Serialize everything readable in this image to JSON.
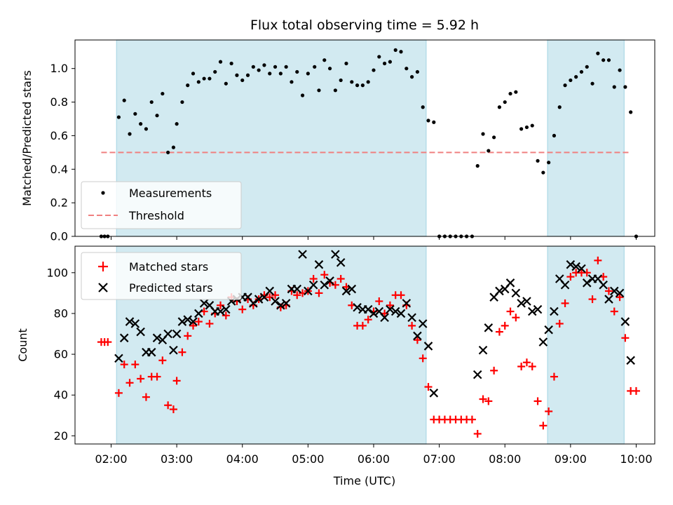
{
  "chart_data": {
    "type": "scatter",
    "title": "Flux total observing time = 5.92 h",
    "xlabel": "Time (UTC)",
    "x_ticks": [
      "02:00",
      "03:00",
      "04:00",
      "05:00",
      "06:00",
      "07:00",
      "08:00",
      "09:00",
      "10:00"
    ],
    "xlim": [
      "01:27",
      "10:17"
    ],
    "shaded_intervals": [
      [
        "02:05",
        "06:48"
      ],
      [
        "08:39",
        "09:49"
      ]
    ],
    "shade_color": "#add8e6",
    "top": {
      "ylabel": "Matched/Predicted stars",
      "ylim": [
        0,
        1.17
      ],
      "y_ticks": [
        "0.0",
        "0.2",
        "0.4",
        "0.6",
        "0.8",
        "1.0"
      ],
      "legend": [
        "Measurements",
        "Threshold"
      ],
      "legend_position": "lower left",
      "threshold": {
        "value": 0.5,
        "x_range": [
          "01:51",
          "09:55"
        ],
        "color": "#f08080"
      },
      "measurements": [
        [
          "01:51",
          0
        ],
        [
          "01:54",
          0
        ],
        [
          "01:57",
          0
        ],
        [
          "02:07",
          0.71
        ],
        [
          "02:12",
          0.81
        ],
        [
          "02:17",
          0.61
        ],
        [
          "02:22",
          0.73
        ],
        [
          "02:27",
          0.67
        ],
        [
          "02:32",
          0.64
        ],
        [
          "02:37",
          0.8
        ],
        [
          "02:42",
          0.72
        ],
        [
          "02:47",
          0.85
        ],
        [
          "02:52",
          0.5
        ],
        [
          "02:57",
          0.53
        ],
        [
          "03:00",
          0.67
        ],
        [
          "03:05",
          0.8
        ],
        [
          "03:10",
          0.9
        ],
        [
          "03:15",
          0.97
        ],
        [
          "03:20",
          0.92
        ],
        [
          "03:25",
          0.94
        ],
        [
          "03:30",
          0.94
        ],
        [
          "03:35",
          0.98
        ],
        [
          "03:40",
          1.04
        ],
        [
          "03:45",
          0.91
        ],
        [
          "03:50",
          1.03
        ],
        [
          "03:55",
          0.96
        ],
        [
          "04:00",
          0.93
        ],
        [
          "04:05",
          0.96
        ],
        [
          "04:10",
          1.01
        ],
        [
          "04:15",
          0.99
        ],
        [
          "04:20",
          1.02
        ],
        [
          "04:25",
          0.97
        ],
        [
          "04:30",
          1.01
        ],
        [
          "04:35",
          0.97
        ],
        [
          "04:40",
          1.01
        ],
        [
          "04:45",
          0.92
        ],
        [
          "04:50",
          0.98
        ],
        [
          "04:55",
          0.84
        ],
        [
          "05:00",
          0.97
        ],
        [
          "05:06",
          1.01
        ],
        [
          "05:10",
          0.87
        ],
        [
          "05:15",
          1.05
        ],
        [
          "05:20",
          1.0
        ],
        [
          "05:25",
          0.87
        ],
        [
          "05:30",
          0.93
        ],
        [
          "05:35",
          1.03
        ],
        [
          "05:40",
          0.92
        ],
        [
          "05:45",
          0.9
        ],
        [
          "05:50",
          0.9
        ],
        [
          "05:55",
          0.92
        ],
        [
          "06:00",
          0.99
        ],
        [
          "06:05",
          1.07
        ],
        [
          "06:10",
          1.03
        ],
        [
          "06:15",
          1.04
        ],
        [
          "06:20",
          1.11
        ],
        [
          "06:25",
          1.1
        ],
        [
          "06:30",
          1.0
        ],
        [
          "06:35",
          0.95
        ],
        [
          "06:40",
          0.98
        ],
        [
          "06:45",
          0.77
        ],
        [
          "06:50",
          0.69
        ],
        [
          "06:55",
          0.68
        ],
        [
          "07:00",
          0
        ],
        [
          "07:05",
          0
        ],
        [
          "07:10",
          0
        ],
        [
          "07:15",
          0
        ],
        [
          "07:20",
          0
        ],
        [
          "07:25",
          0
        ],
        [
          "07:30",
          0
        ],
        [
          "07:35",
          0.42
        ],
        [
          "07:40",
          0.61
        ],
        [
          "07:45",
          0.51
        ],
        [
          "07:50",
          0.59
        ],
        [
          "07:55",
          0.77
        ],
        [
          "08:00",
          0.8
        ],
        [
          "08:05",
          0.85
        ],
        [
          "08:10",
          0.86
        ],
        [
          "08:15",
          0.64
        ],
        [
          "08:20",
          0.65
        ],
        [
          "08:25",
          0.66
        ],
        [
          "08:30",
          0.45
        ],
        [
          "08:35",
          0.38
        ],
        [
          "08:40",
          0.44
        ],
        [
          "08:45",
          0.6
        ],
        [
          "08:50",
          0.77
        ],
        [
          "08:55",
          0.9
        ],
        [
          "09:00",
          0.93
        ],
        [
          "09:05",
          0.95
        ],
        [
          "09:10",
          0.98
        ],
        [
          "09:15",
          1.01
        ],
        [
          "09:20",
          0.91
        ],
        [
          "09:25",
          1.09
        ],
        [
          "09:30",
          1.05
        ],
        [
          "09:35",
          1.05
        ],
        [
          "09:40",
          0.89
        ],
        [
          "09:45",
          0.99
        ],
        [
          "09:50",
          0.89
        ],
        [
          "09:55",
          0.74
        ],
        [
          "10:00",
          0
        ]
      ]
    },
    "bottom": {
      "ylabel": "Count",
      "ylim": [
        16,
        113
      ],
      "y_ticks": [
        "20",
        "40",
        "60",
        "80",
        "100"
      ],
      "legend": [
        "Matched stars",
        "Predicted stars"
      ],
      "legend_position": "upper left",
      "matched_color": "#ff0000",
      "predicted_color": "#000000",
      "matched": [
        [
          "01:51",
          66
        ],
        [
          "01:54",
          66
        ],
        [
          "01:57",
          66
        ],
        [
          "02:07",
          41
        ],
        [
          "02:12",
          55
        ],
        [
          "02:17",
          46
        ],
        [
          "02:22",
          55
        ],
        [
          "02:27",
          48
        ],
        [
          "02:32",
          39
        ],
        [
          "02:37",
          49
        ],
        [
          "02:42",
          49
        ],
        [
          "02:47",
          57
        ],
        [
          "02:52",
          35
        ],
        [
          "02:57",
          33
        ],
        [
          "03:00",
          47
        ],
        [
          "03:05",
          61
        ],
        [
          "03:10",
          69
        ],
        [
          "03:15",
          74
        ],
        [
          "03:20",
          76
        ],
        [
          "03:25",
          81
        ],
        [
          "03:30",
          75
        ],
        [
          "03:35",
          80
        ],
        [
          "03:40",
          84
        ],
        [
          "03:45",
          79
        ],
        [
          "03:50",
          88
        ],
        [
          "03:55",
          86
        ],
        [
          "04:00",
          82
        ],
        [
          "04:05",
          87
        ],
        [
          "04:10",
          84
        ],
        [
          "04:15",
          87
        ],
        [
          "04:20",
          89
        ],
        [
          "04:25",
          88
        ],
        [
          "04:30",
          89
        ],
        [
          "04:35",
          83
        ],
        [
          "04:40",
          84
        ],
        [
          "04:45",
          91
        ],
        [
          "04:50",
          89
        ],
        [
          "04:55",
          90
        ],
        [
          "05:00",
          91
        ],
        [
          "05:05",
          97
        ],
        [
          "05:10",
          90
        ],
        [
          "05:15",
          99
        ],
        [
          "05:20",
          95
        ],
        [
          "05:25",
          94
        ],
        [
          "05:30",
          97
        ],
        [
          "05:35",
          93
        ],
        [
          "05:40",
          84
        ],
        [
          "05:45",
          74
        ],
        [
          "05:50",
          74
        ],
        [
          "05:55",
          77
        ],
        [
          "06:00",
          81
        ],
        [
          "06:05",
          86
        ],
        [
          "06:10",
          80
        ],
        [
          "06:15",
          84
        ],
        [
          "06:20",
          89
        ],
        [
          "06:25",
          89
        ],
        [
          "06:30",
          84
        ],
        [
          "06:35",
          74
        ],
        [
          "06:40",
          67
        ],
        [
          "06:45",
          58
        ],
        [
          "06:50",
          44
        ],
        [
          "06:55",
          28
        ],
        [
          "07:00",
          28
        ],
        [
          "07:05",
          28
        ],
        [
          "07:10",
          28
        ],
        [
          "07:15",
          28
        ],
        [
          "07:20",
          28
        ],
        [
          "07:25",
          28
        ],
        [
          "07:30",
          28
        ],
        [
          "07:35",
          21
        ],
        [
          "07:40",
          38
        ],
        [
          "07:45",
          37
        ],
        [
          "07:50",
          52
        ],
        [
          "07:55",
          71
        ],
        [
          "08:00",
          74
        ],
        [
          "08:05",
          81
        ],
        [
          "08:10",
          78
        ],
        [
          "08:15",
          54
        ],
        [
          "08:20",
          56
        ],
        [
          "08:25",
          54
        ],
        [
          "08:30",
          37
        ],
        [
          "08:35",
          25
        ],
        [
          "08:40",
          32
        ],
        [
          "08:45",
          49
        ],
        [
          "08:50",
          75
        ],
        [
          "08:55",
          85
        ],
        [
          "09:00",
          98
        ],
        [
          "09:05",
          100
        ],
        [
          "09:10",
          100
        ],
        [
          "09:15",
          100
        ],
        [
          "09:20",
          87
        ],
        [
          "09:25",
          106
        ],
        [
          "09:30",
          98
        ],
        [
          "09:35",
          91
        ],
        [
          "09:40",
          81
        ],
        [
          "09:45",
          88
        ],
        [
          "09:50",
          68
        ],
        [
          "09:55",
          42
        ],
        [
          "10:00",
          42
        ]
      ],
      "predicted": [
        [
          "02:07",
          58
        ],
        [
          "02:12",
          68
        ],
        [
          "02:17",
          76
        ],
        [
          "02:22",
          75
        ],
        [
          "02:27",
          71
        ],
        [
          "02:32",
          61
        ],
        [
          "02:37",
          61
        ],
        [
          "02:42",
          68
        ],
        [
          "02:47",
          67
        ],
        [
          "02:52",
          70
        ],
        [
          "02:57",
          62
        ],
        [
          "03:00",
          70
        ],
        [
          "03:05",
          76
        ],
        [
          "03:10",
          77
        ],
        [
          "03:15",
          76
        ],
        [
          "03:20",
          80
        ],
        [
          "03:25",
          85
        ],
        [
          "03:30",
          84
        ],
        [
          "03:35",
          81
        ],
        [
          "03:40",
          81
        ],
        [
          "03:45",
          82
        ],
        [
          "03:50",
          86
        ],
        [
          "03:55",
          87
        ],
        [
          "04:00",
          88
        ],
        [
          "04:05",
          88
        ],
        [
          "04:10",
          85
        ],
        [
          "04:15",
          87
        ],
        [
          "04:20",
          88
        ],
        [
          "04:25",
          91
        ],
        [
          "04:30",
          86
        ],
        [
          "04:35",
          84
        ],
        [
          "04:40",
          85
        ],
        [
          "04:45",
          92
        ],
        [
          "04:50",
          92
        ],
        [
          "04:55",
          109
        ],
        [
          "05:00",
          91
        ],
        [
          "05:05",
          94
        ],
        [
          "05:10",
          104
        ],
        [
          "05:15",
          94
        ],
        [
          "05:20",
          96
        ],
        [
          "05:25",
          109
        ],
        [
          "05:30",
          105
        ],
        [
          "05:35",
          91
        ],
        [
          "05:40",
          92
        ],
        [
          "05:45",
          83
        ],
        [
          "05:50",
          82
        ],
        [
          "05:55",
          82
        ],
        [
          "06:00",
          80
        ],
        [
          "06:05",
          81
        ],
        [
          "06:10",
          78
        ],
        [
          "06:15",
          82
        ],
        [
          "06:20",
          81
        ],
        [
          "06:25",
          80
        ],
        [
          "06:30",
          85
        ],
        [
          "06:35",
          78
        ],
        [
          "06:40",
          69
        ],
        [
          "06:45",
          75
        ],
        [
          "06:50",
          64
        ],
        [
          "06:55",
          41
        ],
        [
          "07:35",
          50
        ],
        [
          "07:40",
          62
        ],
        [
          "07:45",
          73
        ],
        [
          "07:50",
          88
        ],
        [
          "07:55",
          91
        ],
        [
          "08:00",
          92
        ],
        [
          "08:05",
          95
        ],
        [
          "08:10",
          90
        ],
        [
          "08:15",
          85
        ],
        [
          "08:20",
          86
        ],
        [
          "08:25",
          81
        ],
        [
          "08:30",
          82
        ],
        [
          "08:35",
          66
        ],
        [
          "08:40",
          72
        ],
        [
          "08:45",
          81
        ],
        [
          "08:50",
          97
        ],
        [
          "08:55",
          94
        ],
        [
          "09:00",
          104
        ],
        [
          "09:05",
          103
        ],
        [
          "09:10",
          102
        ],
        [
          "09:15",
          95
        ],
        [
          "09:20",
          97
        ],
        [
          "09:25",
          97
        ],
        [
          "09:30",
          94
        ],
        [
          "09:35",
          87
        ],
        [
          "09:40",
          91
        ],
        [
          "09:45",
          90
        ],
        [
          "09:50",
          76
        ],
        [
          "09:55",
          57
        ]
      ]
    }
  }
}
